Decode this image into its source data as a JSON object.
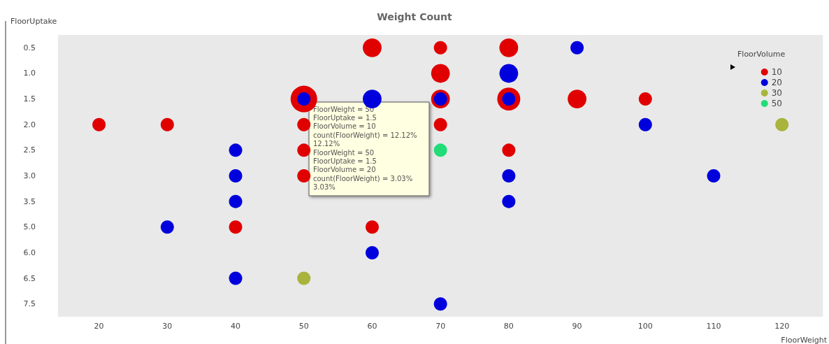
{
  "chart_data": {
    "type": "bubble",
    "title": "Weight Count",
    "xlabel": "FloorWeight",
    "ylabel": "FloorUptake",
    "legend_title": "FloorVolume",
    "orientation": "horizontal",
    "categories": [
      "0.5",
      "1.0",
      "1.5",
      "2.0",
      "2.5",
      "3.0",
      "3.5",
      "5.0",
      "6.0",
      "6.5",
      "7.5"
    ],
    "xlim": [
      14,
      126
    ],
    "xticks": [
      20,
      30,
      40,
      50,
      60,
      70,
      80,
      90,
      100,
      110,
      120
    ],
    "grid": false,
    "legend": "top right",
    "marker": "circle",
    "series": [
      {
        "name": "10",
        "color": "#e00000",
        "x": [
          "0.5",
          "0.5",
          "0.5",
          "1.0",
          "1.5",
          "1.5",
          "1.5",
          "1.5",
          "1.5",
          "2.0",
          "2.0",
          "2.0",
          "2.0",
          "2.5",
          "2.5",
          "3.0",
          "5.0",
          "5.0"
        ],
        "values": [
          60,
          70,
          80,
          70,
          50,
          70,
          80,
          90,
          100,
          20,
          30,
          50,
          70,
          50,
          80,
          50,
          40,
          60
        ],
        "sizes": [
          0.5,
          0.25,
          0.5,
          0.5,
          1,
          0.5,
          0.75,
          0.5,
          0.25,
          0.25,
          0.25,
          0.25,
          0.25,
          0.25,
          0.25,
          0.25,
          0.25,
          0.25
        ]
      },
      {
        "name": "20",
        "color": "#0000dd",
        "x": [
          "0.5",
          "1.0",
          "1.5",
          "1.5",
          "1.5",
          "1.5",
          "2.0",
          "2.5",
          "3.0",
          "3.0",
          "3.0",
          "3.5",
          "3.5",
          "5.0",
          "6.0",
          "6.5",
          "7.5"
        ],
        "values": [
          90,
          80,
          50,
          60,
          70,
          80,
          100,
          40,
          40,
          80,
          110,
          40,
          80,
          30,
          60,
          40,
          70
        ],
        "sizes": [
          0.25,
          0.5,
          0.25,
          0.5,
          0.25,
          0.25,
          0.25,
          0.25,
          0.25,
          0.25,
          0.25,
          0.25,
          0.25,
          0.25,
          0.25,
          0.25,
          0.25
        ]
      },
      {
        "name": "30",
        "color": "#a8b43c",
        "x": [
          "2.0",
          "6.5"
        ],
        "values": [
          120,
          50
        ],
        "sizes": [
          0.25,
          0.25
        ]
      },
      {
        "name": "50",
        "color": "#22dd77",
        "x": [
          "2.5"
        ],
        "values": [
          70
        ],
        "sizes": [
          0.25
        ]
      }
    ],
    "annotations": [
      "FloorWeight = 50",
      "FloorUptake = 1.5",
      "FloorVolume = 10",
      "count(FloorWeight) = 12.12%",
      "12.12%",
      "FloorWeight = 50",
      "FloorUptake = 1.5",
      "FloorVolume = 20",
      "count(FloorWeight) = 3.03%",
      "3.03%"
    ]
  }
}
